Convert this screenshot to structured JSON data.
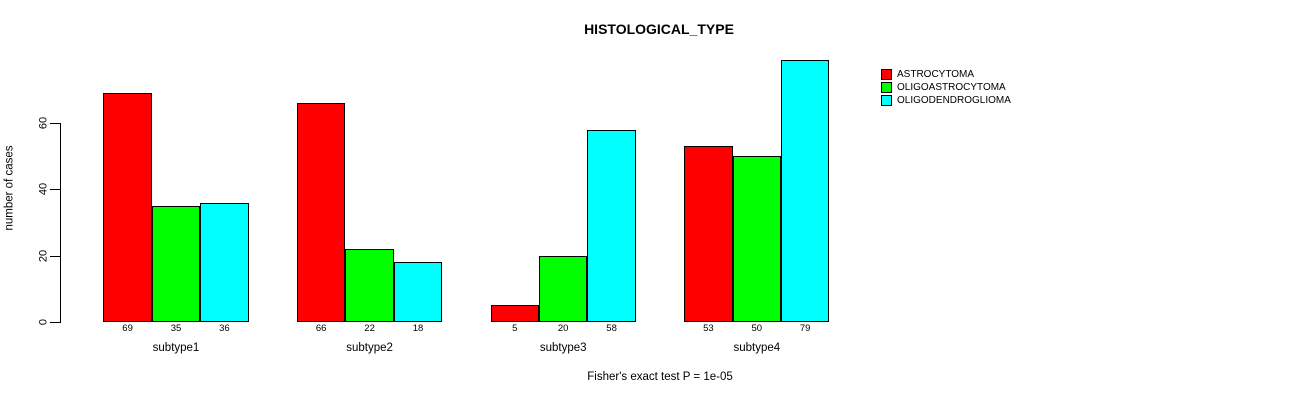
{
  "chart_data": {
    "type": "bar",
    "title": "HISTOLOGICAL_TYPE",
    "ylabel": "number of cases",
    "xlabel": "",
    "caption": "Fisher's exact test P = 1e-05",
    "categories": [
      "subtype1",
      "subtype2",
      "subtype3",
      "subtype4"
    ],
    "series": [
      {
        "name": "ASTROCYTOMA",
        "color": "#ff0000",
        "values": [
          69,
          66,
          5,
          53
        ]
      },
      {
        "name": "OLIGOASTROCYTOMA",
        "color": "#00ff00",
        "values": [
          35,
          22,
          20,
          50
        ]
      },
      {
        "name": "OLIGODENDROGLIOMA",
        "color": "#00ffff",
        "values": [
          36,
          18,
          58,
          79
        ]
      }
    ],
    "bar_value_labels": [
      [
        69,
        35,
        36
      ],
      [
        66,
        22,
        18
      ],
      [
        5,
        20,
        58
      ],
      [
        53,
        50,
        79
      ]
    ],
    "yticks": [
      0,
      20,
      40,
      60
    ],
    "ylim": [
      0,
      80
    ],
    "grid": false,
    "legend_position": "right",
    "background_color": "#ffffff",
    "axis_color": "#000000"
  }
}
